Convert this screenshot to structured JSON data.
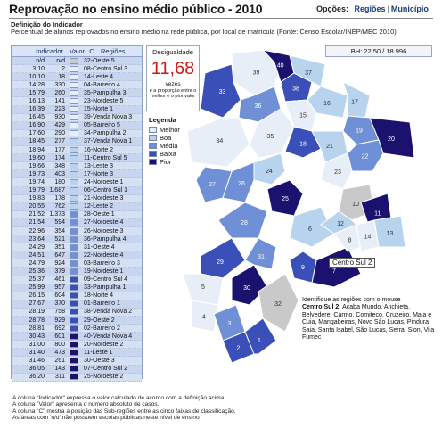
{
  "header": {
    "title": "Reprovação no ensino médio público - 2010",
    "options_label": "Opções:",
    "option_regions": "Regiões",
    "option_municipality": "Município"
  },
  "definition": {
    "heading": "Definição do Indicador",
    "text": "Percentual de alunos reprovados no ensino médio na rede pública, por local de matrícula (Fonte: Censo Escolar/INEP/MEC 2010)"
  },
  "table": {
    "col_indicator": "Indicador",
    "col_value": "Valor",
    "col_c": "C",
    "col_regions": "Regiões",
    "rows": [
      {
        "ind": "n/d",
        "val": "n/d",
        "cls": "nd",
        "reg": "32-Oeste 5"
      },
      {
        "ind": "3,10",
        "val": "2",
        "cls": "melhor",
        "reg": "08-Centro Sul 3"
      },
      {
        "ind": "10,10",
        "val": "18",
        "cls": "melhor",
        "reg": "14-Leste 4"
      },
      {
        "ind": "14,28",
        "val": "330",
        "cls": "melhor",
        "reg": "04-Barreiro 4"
      },
      {
        "ind": "15,79",
        "val": "260",
        "cls": "melhor",
        "reg": "35-Pampulha 3"
      },
      {
        "ind": "16,13",
        "val": "141",
        "cls": "melhor",
        "reg": "23-Nordeste 5"
      },
      {
        "ind": "16,39",
        "val": "223",
        "cls": "melhor",
        "reg": "15-Norte 1"
      },
      {
        "ind": "16,45",
        "val": "930",
        "cls": "melhor",
        "reg": "39-Venda Nova 3"
      },
      {
        "ind": "16,90",
        "val": "429",
        "cls": "melhor",
        "reg": "05-Barreiro 5"
      },
      {
        "ind": "17,60",
        "val": "290",
        "cls": "melhor",
        "reg": "34-Pampulha 2"
      },
      {
        "ind": "18,45",
        "val": "277",
        "cls": "boa",
        "reg": "37-Venda Nova 1"
      },
      {
        "ind": "18,94",
        "val": "177",
        "cls": "boa",
        "reg": "16-Norte 2"
      },
      {
        "ind": "19,60",
        "val": "174",
        "cls": "boa",
        "reg": "11-Centro Sul 5"
      },
      {
        "ind": "19,66",
        "val": "348",
        "cls": "boa",
        "reg": "13-Leste 3"
      },
      {
        "ind": "19,73",
        "val": "403",
        "cls": "boa",
        "reg": "17-Norte 3"
      },
      {
        "ind": "19,74",
        "val": "180",
        "cls": "boa",
        "reg": "24-Noroeste 1"
      },
      {
        "ind": "19,79",
        "val": "1.687",
        "cls": "boa",
        "reg": "06-Centro Sul 1"
      },
      {
        "ind": "19,83",
        "val": "178",
        "cls": "boa",
        "reg": "21-Nordeste 3"
      },
      {
        "ind": "20,55",
        "val": "762",
        "cls": "boa",
        "reg": "12-Leste 2"
      },
      {
        "ind": "21,52",
        "val": "1.373",
        "cls": "media",
        "reg": "28-Oeste 1"
      },
      {
        "ind": "21,54",
        "val": "594",
        "cls": "media",
        "reg": "27-Noroeste 4"
      },
      {
        "ind": "22,96",
        "val": "354",
        "cls": "media",
        "reg": "26-Noroeste 3"
      },
      {
        "ind": "23,64",
        "val": "521",
        "cls": "media",
        "reg": "36-Pampulha 4"
      },
      {
        "ind": "24,29",
        "val": "351",
        "cls": "media",
        "reg": "31-Oeste 4"
      },
      {
        "ind": "24,51",
        "val": "647",
        "cls": "media",
        "reg": "22-Nordeste 4"
      },
      {
        "ind": "24,79",
        "val": "924",
        "cls": "media",
        "reg": "03-Barreiro 3"
      },
      {
        "ind": "25,36",
        "val": "379",
        "cls": "media",
        "reg": "19-Nordeste 1"
      },
      {
        "ind": "25,37",
        "val": "461",
        "cls": "baixa",
        "reg": "09-Centro Sul 4"
      },
      {
        "ind": "25,99",
        "val": "957",
        "cls": "baixa",
        "reg": "33-Pampulha 1"
      },
      {
        "ind": "26,15",
        "val": "604",
        "cls": "baixa",
        "reg": "18-Norte 4"
      },
      {
        "ind": "27,67",
        "val": "370",
        "cls": "baixa",
        "reg": "01-Barreiro 1"
      },
      {
        "ind": "28,19",
        "val": "758",
        "cls": "baixa",
        "reg": "38-Venda Nova 2"
      },
      {
        "ind": "28,78",
        "val": "929",
        "cls": "baixa",
        "reg": "29-Oeste 2"
      },
      {
        "ind": "28,81",
        "val": "692",
        "cls": "baixa",
        "reg": "02-Barreiro 2"
      },
      {
        "ind": "30,43",
        "val": "601",
        "cls": "pior",
        "reg": "40-Venda Nova 4"
      },
      {
        "ind": "31,00",
        "val": "800",
        "cls": "pior",
        "reg": "20-Nordeste 2"
      },
      {
        "ind": "31,40",
        "val": "473",
        "cls": "pior",
        "reg": "11-Leste 1"
      },
      {
        "ind": "31,46",
        "val": "261",
        "cls": "pior",
        "reg": "30-Oeste 3"
      },
      {
        "ind": "36,05",
        "val": "143",
        "cls": "pior",
        "reg": "07-Centro Sul 2"
      },
      {
        "ind": "36,20",
        "val": "311",
        "cls": "pior",
        "reg": "25-Noroeste 2"
      }
    ]
  },
  "inequality": {
    "label": "Desigualdade",
    "value": "11,68",
    "unit": "vezes",
    "note": "é a proporção entre o melhor e o pior valor"
  },
  "legend": {
    "title": "Legenda",
    "items": [
      {
        "label": "Melhor",
        "color": "#e8eef8"
      },
      {
        "label": "Boa",
        "color": "#b7d3ee"
      },
      {
        "label": "Média",
        "color": "#6f8fd6"
      },
      {
        "label": "Baixa",
        "color": "#3a4fb8"
      },
      {
        "label": "Pior",
        "color": "#1b1270"
      }
    ]
  },
  "colors": {
    "nd": "#c9c9c9",
    "melhor": "#e8eef8",
    "boa": "#b7d3ee",
    "media": "#6f8fd6",
    "baixa": "#3a4fb8",
    "pior": "#1b1270"
  },
  "bh": {
    "text": "BH:  22,50  /  18.996"
  },
  "map": {
    "callout": "Centro Sul 2",
    "region_numbers": [
      "39",
      "40",
      "38",
      "37",
      "33",
      "36",
      "34",
      "35",
      "16",
      "17",
      "15",
      "18",
      "19",
      "20",
      "21",
      "22",
      "23",
      "24",
      "25",
      "26",
      "27",
      "28",
      "29",
      "30",
      "31",
      "32",
      "6",
      "7",
      "8",
      "9",
      "10",
      "11",
      "12",
      "13",
      "14",
      "5",
      "4",
      "3",
      "2",
      "1"
    ]
  },
  "info": {
    "lead": "Identifique as regiões com o mouse",
    "region": "Centro Sul 2:",
    "text": "Acaba Mundo, Anchieta, Belvedere, Carmo, Comiteco, Cruzeiro, Mala e Cuia, Mangabeiras, Novo São Lucas, Pindura Saia, Santa Isabel, São Lucas, Serra, Sion, Vila Fumec"
  },
  "footer": {
    "lines": [
      "A coluna \"Indicador\" expressa o valor calculado de acordo com a definição acima.",
      "A coluna \"Valor\" apresenta o número absoluto de casos.",
      "A coluna \"C\" mostra a posição das Sub-regiões entre as cinco faixas de classificação.",
      "As áreas com 'n/d' não possuem escolas públicas neste nível de ensino"
    ]
  }
}
